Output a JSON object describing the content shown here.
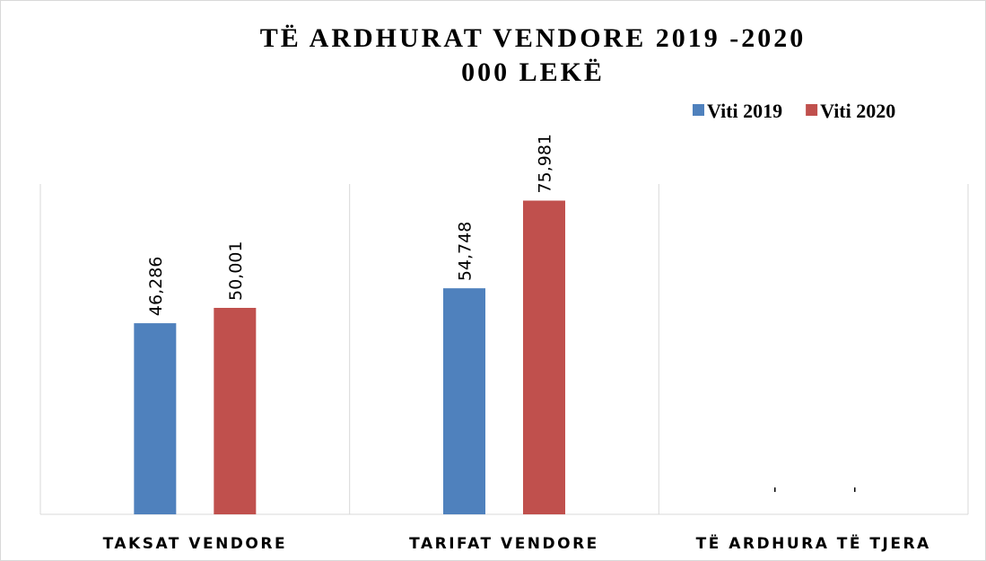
{
  "chart_data": {
    "type": "bar",
    "title": "TË ARDHURAT VENDORE 2019 -2020",
    "subtitle": "000 LEKË",
    "categories": [
      "TAKSAT VENDORE",
      "TARIFAT VENDORE",
      "TË ARDHURA TË TJERA"
    ],
    "series": [
      {
        "name": "Viti 2019",
        "color": "#4f81bd",
        "values": [
          46286,
          54748,
          0
        ],
        "value_labels": [
          "46,286",
          "54,748",
          "-"
        ]
      },
      {
        "name": "Viti 2020",
        "color": "#c0504d",
        "values": [
          50001,
          75981,
          0
        ],
        "value_labels": [
          "50,001",
          "75,981",
          "-"
        ]
      }
    ],
    "ylim": [
      0,
      80000
    ],
    "legend": "top-right"
  }
}
